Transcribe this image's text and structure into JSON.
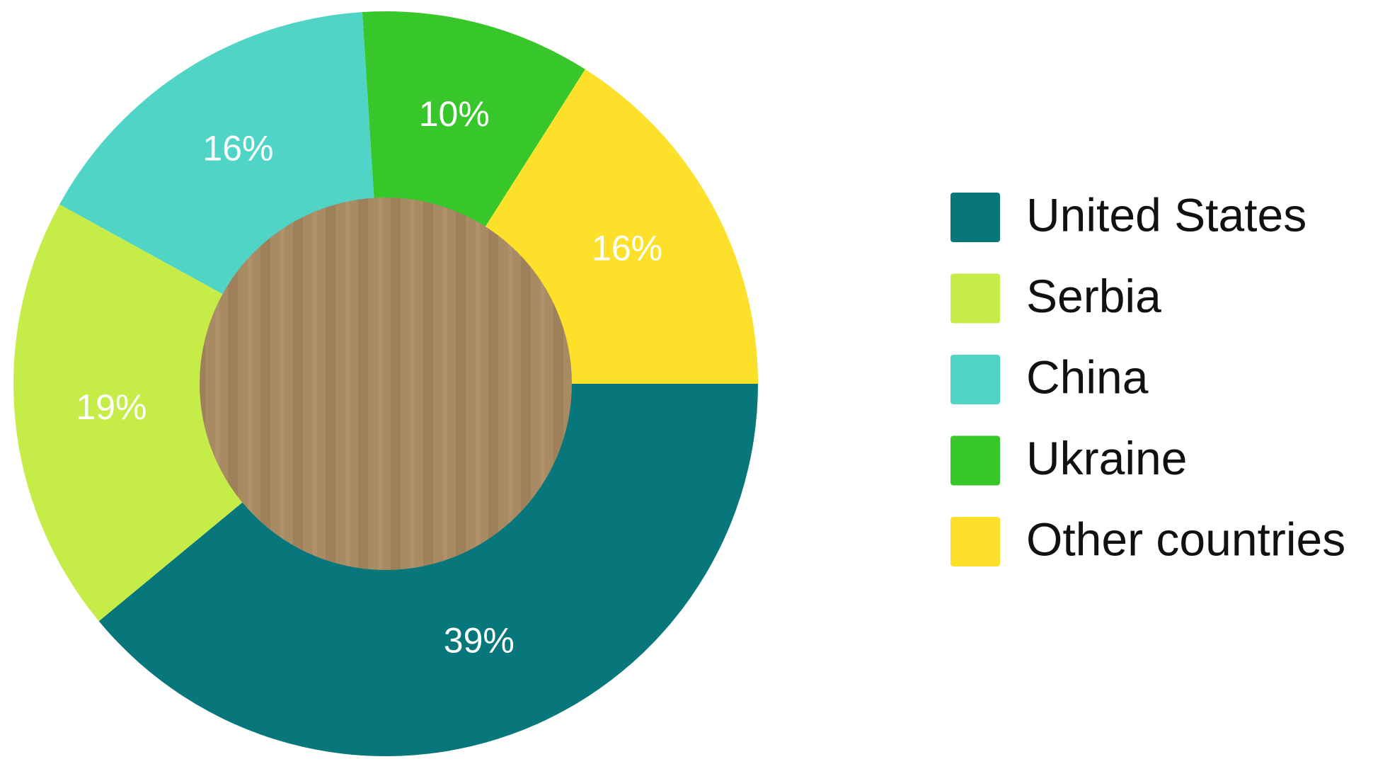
{
  "chart_data": {
    "type": "donut",
    "categories": [
      "United States",
      "Serbia",
      "China",
      "Ukraine",
      "Other countries"
    ],
    "values": [
      39,
      19,
      16,
      10,
      16
    ],
    "value_labels": [
      "39%",
      "19%",
      "16%",
      "10%",
      "16%"
    ],
    "colors": [
      "#08777c",
      "#c5ec47",
      "#50d4c6",
      "#37c72a",
      "#fde02a"
    ],
    "legend": "right"
  }
}
